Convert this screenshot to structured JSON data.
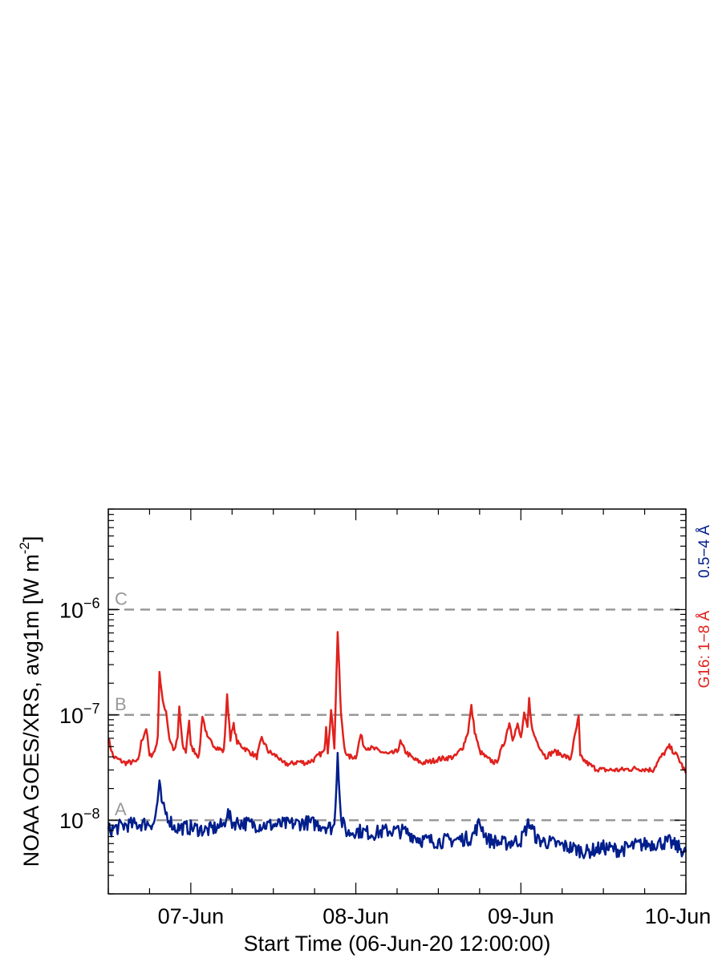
{
  "chart_data": {
    "type": "line",
    "ylabel_main": "NOAA GOES/XRS, avg1m [W m",
    "ylabel_exp": "-2",
    "ylabel_close": "]",
    "xlabel": "Start Time (06-Jun-20 12:00:00)",
    "x_ticks": [
      "07-Jun",
      "08-Jun",
      "09-Jun",
      "10-Jun"
    ],
    "x_range_days": [
      0,
      3.5
    ],
    "y_scale": "log",
    "ylim": [
      2e-09,
      9e-06
    ],
    "y_ticks": [
      {
        "base": "10",
        "exp": "−8"
      },
      {
        "base": "10",
        "exp": "−7"
      },
      {
        "base": "10",
        "exp": "−6"
      }
    ],
    "flare_classes": [
      {
        "label": "A",
        "value": 1e-08
      },
      {
        "label": "B",
        "value": 1e-07
      },
      {
        "label": "C",
        "value": 1e-06
      }
    ],
    "series": [
      {
        "name": "G16: 1−8 Å",
        "color": "#e0211d",
        "points": [
          [
            0,
            6e-08
          ],
          [
            0.03,
            4e-08
          ],
          [
            0.1,
            3.5e-08
          ],
          [
            0.18,
            3.6e-08
          ],
          [
            0.2,
            5.5e-08
          ],
          [
            0.23,
            7.5e-08
          ],
          [
            0.25,
            4e-08
          ],
          [
            0.28,
            4.5e-08
          ],
          [
            0.3,
            6e-08
          ],
          [
            0.31,
            2.6e-07
          ],
          [
            0.33,
            1.3e-07
          ],
          [
            0.35,
            1.1e-07
          ],
          [
            0.37,
            6e-08
          ],
          [
            0.4,
            4.5e-08
          ],
          [
            0.42,
            6e-08
          ],
          [
            0.43,
            1.2e-07
          ],
          [
            0.45,
            5e-08
          ],
          [
            0.47,
            4.5e-08
          ],
          [
            0.49,
            9e-08
          ],
          [
            0.5,
            5e-08
          ],
          [
            0.55,
            4e-08
          ],
          [
            0.57,
            1e-07
          ],
          [
            0.6,
            6e-08
          ],
          [
            0.65,
            5e-08
          ],
          [
            0.7,
            4.5e-08
          ],
          [
            0.72,
            1.5e-07
          ],
          [
            0.74,
            6e-08
          ],
          [
            0.76,
            8e-08
          ],
          [
            0.78,
            5.5e-08
          ],
          [
            0.85,
            4.5e-08
          ],
          [
            0.9,
            4e-08
          ],
          [
            0.93,
            6e-08
          ],
          [
            0.97,
            4.5e-08
          ],
          [
            1.0,
            4.2e-08
          ],
          [
            1.03,
            4e-08
          ],
          [
            1.05,
            3.5e-08
          ],
          [
            1.1,
            3.4e-08
          ],
          [
            1.15,
            3.6e-08
          ],
          [
            1.2,
            3.5e-08
          ],
          [
            1.25,
            3.8e-08
          ],
          [
            1.28,
            4.2e-08
          ],
          [
            1.31,
            4.5e-08
          ],
          [
            1.32,
            8e-08
          ],
          [
            1.33,
            4.5e-08
          ],
          [
            1.35,
            1.1e-07
          ],
          [
            1.37,
            5e-08
          ],
          [
            1.39,
            6.3e-07
          ],
          [
            1.4,
            2.5e-07
          ],
          [
            1.41,
            1e-07
          ],
          [
            1.43,
            5e-08
          ],
          [
            1.45,
            4e-08
          ],
          [
            1.5,
            4e-08
          ],
          [
            1.53,
            6.5e-08
          ],
          [
            1.55,
            5e-08
          ],
          [
            1.6,
            4.8e-08
          ],
          [
            1.65,
            4.5e-08
          ],
          [
            1.7,
            4.2e-08
          ],
          [
            1.75,
            4.5e-08
          ],
          [
            1.77,
            5.5e-08
          ],
          [
            1.8,
            4.5e-08
          ],
          [
            1.85,
            3.8e-08
          ],
          [
            1.9,
            3.5e-08
          ],
          [
            1.95,
            3.6e-08
          ],
          [
            2.0,
            3.8e-08
          ],
          [
            2.05,
            3.9e-08
          ],
          [
            2.1,
            4e-08
          ],
          [
            2.15,
            5e-08
          ],
          [
            2.18,
            7e-08
          ],
          [
            2.2,
            1.2e-07
          ],
          [
            2.22,
            7e-08
          ],
          [
            2.25,
            4.5e-08
          ],
          [
            2.3,
            3.8e-08
          ],
          [
            2.35,
            3.5e-08
          ],
          [
            2.4,
            5.5e-08
          ],
          [
            2.43,
            8.5e-08
          ],
          [
            2.45,
            6e-08
          ],
          [
            2.48,
            8e-08
          ],
          [
            2.5,
            6e-08
          ],
          [
            2.52,
            1e-07
          ],
          [
            2.54,
            7.5e-08
          ],
          [
            2.55,
            1.4e-07
          ],
          [
            2.57,
            7e-08
          ],
          [
            2.6,
            5.5e-08
          ],
          [
            2.63,
            4.5e-08
          ],
          [
            2.65,
            4e-08
          ],
          [
            2.7,
            4.5e-08
          ],
          [
            2.75,
            4.2e-08
          ],
          [
            2.8,
            3.8e-08
          ],
          [
            2.85,
            9.5e-08
          ],
          [
            2.86,
            4e-08
          ],
          [
            2.9,
            3.5e-08
          ],
          [
            2.95,
            3.1e-08
          ],
          [
            3.0,
            3e-08
          ],
          [
            3.1,
            3e-08
          ],
          [
            3.2,
            3.1e-08
          ],
          [
            3.3,
            3e-08
          ],
          [
            3.35,
            4e-08
          ],
          [
            3.4,
            5e-08
          ],
          [
            3.45,
            4e-08
          ],
          [
            3.5,
            2.8e-08
          ]
        ]
      },
      {
        "name": "0.5−4 Å",
        "color": "#001e8c",
        "points": [
          [
            0,
            8e-09
          ],
          [
            0.1,
            9e-09
          ],
          [
            0.2,
            9.2e-09
          ],
          [
            0.28,
            9.5e-09
          ],
          [
            0.31,
            2.1e-08
          ],
          [
            0.33,
            1.3e-08
          ],
          [
            0.36,
            1.1e-08
          ],
          [
            0.4,
            8.5e-09
          ],
          [
            0.5,
            8.5e-09
          ],
          [
            0.6,
            8e-09
          ],
          [
            0.7,
            9e-09
          ],
          [
            0.72,
            1.2e-08
          ],
          [
            0.75,
            9.5e-09
          ],
          [
            0.8,
            9.5e-09
          ],
          [
            0.9,
            9e-09
          ],
          [
            1.0,
            9e-09
          ],
          [
            1.1,
            9.2e-09
          ],
          [
            1.2,
            9.5e-09
          ],
          [
            1.3,
            9e-09
          ],
          [
            1.35,
            8.5e-09
          ],
          [
            1.37,
            8.8e-09
          ],
          [
            1.39,
            4.5e-08
          ],
          [
            1.41,
            1e-08
          ],
          [
            1.45,
            7.5e-09
          ],
          [
            1.5,
            8e-09
          ],
          [
            1.6,
            7.5e-09
          ],
          [
            1.7,
            8e-09
          ],
          [
            1.8,
            7.8e-09
          ],
          [
            1.9,
            6.5e-09
          ],
          [
            2.0,
            6.3e-09
          ],
          [
            2.1,
            6.5e-09
          ],
          [
            2.2,
            6.8e-09
          ],
          [
            2.25,
            9.5e-09
          ],
          [
            2.3,
            6.5e-09
          ],
          [
            2.4,
            6e-09
          ],
          [
            2.5,
            6.5e-09
          ],
          [
            2.55,
            9.5e-09
          ],
          [
            2.6,
            6.5e-09
          ],
          [
            2.7,
            6e-09
          ],
          [
            2.8,
            5.5e-09
          ],
          [
            2.9,
            5e-09
          ],
          [
            3.0,
            5.5e-09
          ],
          [
            3.1,
            5.2e-09
          ],
          [
            3.2,
            5.8e-09
          ],
          [
            3.3,
            6e-09
          ],
          [
            3.4,
            6.2e-09
          ],
          [
            3.5,
            5e-09
          ]
        ]
      }
    ]
  }
}
